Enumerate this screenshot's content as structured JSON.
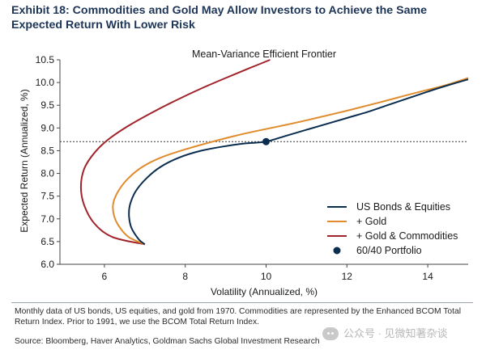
{
  "header": {
    "exhibit_title": "Exhibit 18: Commodities and Gold May Allow Investors to Achieve the Same Expected Return With Lower Risk"
  },
  "chart_data": {
    "type": "line",
    "title": "Mean-Variance Efficient Frontier",
    "xlabel": "Volatility (Annualized, %)",
    "ylabel": "Expected Return (Annualized, %)",
    "xlim": [
      4.9,
      15.0
    ],
    "ylim": [
      6.0,
      10.5
    ],
    "xticks": [
      "6",
      "8",
      "10",
      "12",
      "14"
    ],
    "xtick_values": [
      6,
      8,
      10,
      12,
      14
    ],
    "yticks": [
      "6.0",
      "6.5",
      "7.0",
      "7.5",
      "8.0",
      "8.5",
      "9.0",
      "9.5",
      "10.0",
      "10.5"
    ],
    "ytick_values": [
      6.0,
      6.5,
      7.0,
      7.5,
      8.0,
      8.5,
      9.0,
      9.5,
      10.0,
      10.5
    ],
    "grid": false,
    "legend_position": "lower-right",
    "reference_line": {
      "y": 8.7,
      "style": "dotted"
    },
    "series": [
      {
        "name": "US Bonds & Equities",
        "color": "#0b2d4f",
        "points": [
          [
            7.0,
            6.44
          ],
          [
            6.85,
            6.55
          ],
          [
            6.67,
            6.8
          ],
          [
            6.61,
            7.05
          ],
          [
            6.63,
            7.3
          ],
          [
            6.77,
            7.6
          ],
          [
            7.05,
            7.9
          ],
          [
            7.4,
            8.15
          ],
          [
            7.85,
            8.35
          ],
          [
            8.4,
            8.5
          ],
          [
            9.0,
            8.6
          ],
          [
            9.5,
            8.66
          ],
          [
            10.0,
            8.7
          ],
          [
            10.5,
            8.83
          ],
          [
            11.0,
            8.96
          ],
          [
            11.5,
            9.09
          ],
          [
            12.0,
            9.22
          ],
          [
            12.5,
            9.35
          ],
          [
            13.0,
            9.5
          ],
          [
            13.5,
            9.65
          ],
          [
            14.0,
            9.8
          ],
          [
            14.5,
            9.94
          ],
          [
            15.0,
            10.07
          ]
        ]
      },
      {
        "name": "+ Gold",
        "color": "#e08b2c",
        "points": [
          [
            7.0,
            6.44
          ],
          [
            6.6,
            6.6
          ],
          [
            6.35,
            6.85
          ],
          [
            6.23,
            7.1
          ],
          [
            6.22,
            7.35
          ],
          [
            6.35,
            7.62
          ],
          [
            6.6,
            7.9
          ],
          [
            6.95,
            8.15
          ],
          [
            7.4,
            8.35
          ],
          [
            8.0,
            8.53
          ],
          [
            8.6,
            8.68
          ],
          [
            9.2,
            8.82
          ],
          [
            9.8,
            8.94
          ],
          [
            10.5,
            9.07
          ],
          [
            11.2,
            9.21
          ],
          [
            12.0,
            9.38
          ],
          [
            12.8,
            9.56
          ],
          [
            13.6,
            9.75
          ],
          [
            14.4,
            9.93
          ],
          [
            15.0,
            10.1
          ]
        ]
      },
      {
        "name": "+ Gold & Commodities",
        "color": "#a1232b",
        "points": [
          [
            7.0,
            6.44
          ],
          [
            6.2,
            6.6
          ],
          [
            5.75,
            6.9
          ],
          [
            5.5,
            7.3
          ],
          [
            5.42,
            7.7
          ],
          [
            5.5,
            8.1
          ],
          [
            5.75,
            8.45
          ],
          [
            6.1,
            8.75
          ],
          [
            6.6,
            9.05
          ],
          [
            7.2,
            9.35
          ],
          [
            7.8,
            9.62
          ],
          [
            8.4,
            9.87
          ],
          [
            9.0,
            10.1
          ],
          [
            9.6,
            10.32
          ],
          [
            10.1,
            10.5
          ]
        ]
      }
    ],
    "highlight_point": {
      "name": "60/40 Portfolio",
      "x": 10.0,
      "y": 8.7,
      "color": "#0b2d4f"
    }
  },
  "footer": {
    "note": "Monthly data of US bonds, US equities, and gold from 1970. Commodities are represented by the Enhanced BCOM Total Return Index. Prior to 1991, we use the BCOM Total Return Index.",
    "source": "Source: Bloomberg, Haver Analytics, Goldman Sachs Global Investment Research",
    "watermark": "公众号 · 见微知著杂谈"
  }
}
